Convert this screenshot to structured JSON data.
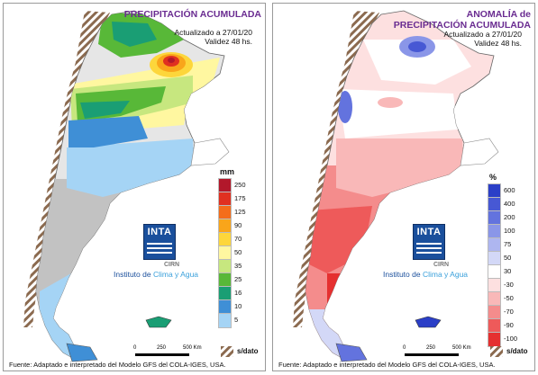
{
  "left": {
    "title": "PRECIPITACIÓN ACUMULADA",
    "updated": "Actualizado a 27/01/20",
    "validity": "Validez 48 hs.",
    "legend_unit": "mm",
    "legend": [
      {
        "label": "250",
        "color": "#b2182b"
      },
      {
        "label": "175",
        "color": "#e03020"
      },
      {
        "label": "125",
        "color": "#f46d1a"
      },
      {
        "label": "90",
        "color": "#f9a51a"
      },
      {
        "label": "70",
        "color": "#fdd63b"
      },
      {
        "label": "50",
        "color": "#fff7a0"
      },
      {
        "label": "35",
        "color": "#c7e77f"
      },
      {
        "label": "25",
        "color": "#58b838"
      },
      {
        "label": "16",
        "color": "#1a9e74"
      },
      {
        "label": "10",
        "color": "#3f8fd6"
      },
      {
        "label": "5",
        "color": "#a5d4f5"
      }
    ],
    "nodata_label": "s/dato",
    "logo_text": "INTA",
    "cirn": "CIRN",
    "institute_prefix": "Instituto de ",
    "institute_highlight": "Clima y Agua",
    "scale_labels": [
      "0",
      "250",
      "500 Km"
    ],
    "source": "Fuente: Adaptado e interpretado del Modelo GFS del COLA-IGES, USA."
  },
  "right": {
    "title_line1": "ANOMALÍA de",
    "title_line2": "PRECIPITACIÓN ACUMULADA",
    "updated": "Actualizado a 27/01/20",
    "validity": "Validez 48 hs.",
    "legend_unit": "%",
    "legend": [
      {
        "label": "600",
        "color": "#2b3fc7"
      },
      {
        "label": "400",
        "color": "#4758d4"
      },
      {
        "label": "200",
        "color": "#6373de"
      },
      {
        "label": "100",
        "color": "#8a96e8"
      },
      {
        "label": "75",
        "color": "#aeb6f0"
      },
      {
        "label": "50",
        "color": "#d3d8f7"
      },
      {
        "label": "30",
        "color": "#ffffff"
      },
      {
        "label": "-30",
        "color": "#fde0e0"
      },
      {
        "label": "-50",
        "color": "#f9b8b8"
      },
      {
        "label": "-70",
        "color": "#f48c8c"
      },
      {
        "label": "-90",
        "color": "#ee5a5a"
      },
      {
        "label": "-100",
        "color": "#e53030"
      }
    ],
    "nodata_label": "s/dato",
    "logo_text": "INTA",
    "cirn": "CIRN",
    "institute_prefix": "Instituto de ",
    "institute_highlight": "Clima y Agua",
    "scale_labels": [
      "0",
      "250",
      "500 Km"
    ],
    "source": "Fuente: Adaptado e interpretado del Modelo GFS del COLA-IGES, USA."
  },
  "colors": {
    "title": "#6a2c91",
    "land_gray": "#c8c8c8",
    "andes_brown": "#8b6a4f"
  }
}
